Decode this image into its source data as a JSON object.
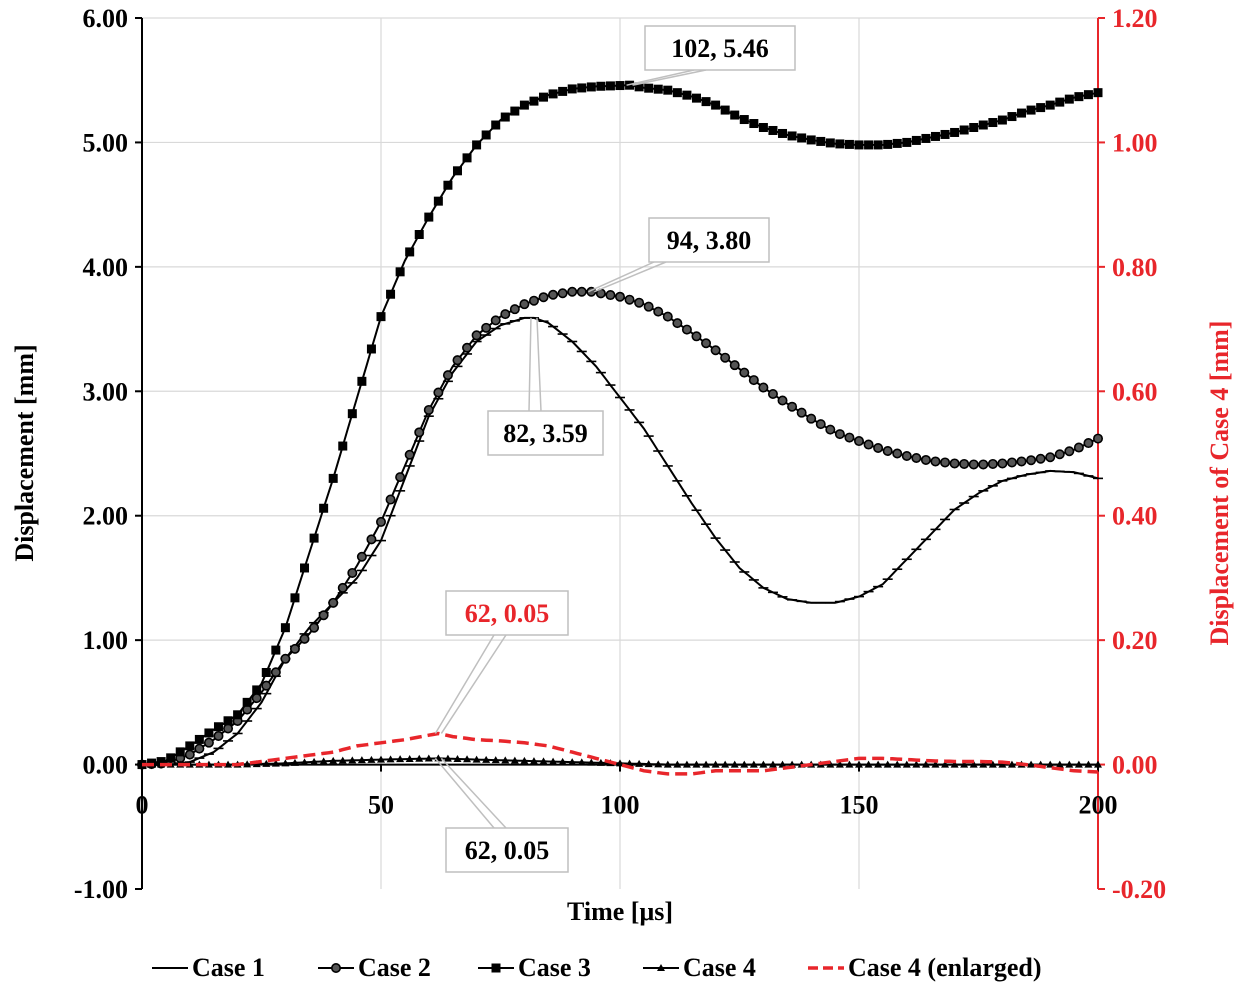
{
  "chart_data": {
    "type": "line",
    "title": "",
    "xlabel": "Time [μs]",
    "ylabel": "Displacement [mm]",
    "y2label": "Displacement of Case 4 [mm]",
    "xlim": [
      0,
      200
    ],
    "ylim": [
      -1.0,
      6.0
    ],
    "y2lim": [
      -0.2,
      1.2
    ],
    "x_ticks": [
      "0",
      "50",
      "100",
      "150",
      "200"
    ],
    "y_ticks": [
      "-1.00",
      "0.00",
      "1.00",
      "2.00",
      "3.00",
      "4.00",
      "5.00",
      "6.00"
    ],
    "y2_ticks": [
      "-0.20",
      "0.00",
      "0.20",
      "0.40",
      "0.60",
      "0.80",
      "1.00",
      "1.20"
    ],
    "grid": true,
    "legend_position": "bottom",
    "colors": {
      "black": "#000000",
      "red": "#e8262b",
      "grid": "#d9d9d9"
    },
    "series": [
      {
        "name": "Case 1",
        "axis": "left",
        "marker": "dash",
        "color": "#000000",
        "points": [
          [
            0,
            0
          ],
          [
            5,
            0
          ],
          [
            10,
            0.02
          ],
          [
            15,
            0.1
          ],
          [
            20,
            0.25
          ],
          [
            25,
            0.5
          ],
          [
            30,
            0.85
          ],
          [
            35,
            1.1
          ],
          [
            40,
            1.3
          ],
          [
            45,
            1.5
          ],
          [
            50,
            1.8
          ],
          [
            55,
            2.3
          ],
          [
            60,
            2.8
          ],
          [
            65,
            3.15
          ],
          [
            70,
            3.4
          ],
          [
            75,
            3.53
          ],
          [
            80,
            3.59
          ],
          [
            82,
            3.59
          ],
          [
            85,
            3.55
          ],
          [
            90,
            3.4
          ],
          [
            95,
            3.2
          ],
          [
            100,
            2.95
          ],
          [
            105,
            2.7
          ],
          [
            110,
            2.4
          ],
          [
            115,
            2.1
          ],
          [
            120,
            1.82
          ],
          [
            125,
            1.58
          ],
          [
            130,
            1.42
          ],
          [
            135,
            1.33
          ],
          [
            140,
            1.3
          ],
          [
            145,
            1.3
          ],
          [
            150,
            1.35
          ],
          [
            155,
            1.45
          ],
          [
            160,
            1.65
          ],
          [
            165,
            1.85
          ],
          [
            170,
            2.05
          ],
          [
            175,
            2.18
          ],
          [
            180,
            2.28
          ],
          [
            185,
            2.33
          ],
          [
            190,
            2.36
          ],
          [
            195,
            2.35
          ],
          [
            200,
            2.3
          ]
        ]
      },
      {
        "name": "Case 2",
        "axis": "left",
        "marker": "circle",
        "color": "#000000",
        "points": [
          [
            0,
            0
          ],
          [
            5,
            0.01
          ],
          [
            10,
            0.08
          ],
          [
            15,
            0.2
          ],
          [
            20,
            0.35
          ],
          [
            25,
            0.58
          ],
          [
            30,
            0.85
          ],
          [
            35,
            1.05
          ],
          [
            40,
            1.3
          ],
          [
            45,
            1.6
          ],
          [
            50,
            1.95
          ],
          [
            55,
            2.4
          ],
          [
            60,
            2.85
          ],
          [
            65,
            3.2
          ],
          [
            70,
            3.45
          ],
          [
            75,
            3.6
          ],
          [
            80,
            3.7
          ],
          [
            85,
            3.77
          ],
          [
            90,
            3.8
          ],
          [
            94,
            3.8
          ],
          [
            100,
            3.76
          ],
          [
            105,
            3.7
          ],
          [
            110,
            3.6
          ],
          [
            115,
            3.47
          ],
          [
            120,
            3.33
          ],
          [
            125,
            3.18
          ],
          [
            130,
            3.03
          ],
          [
            135,
            2.9
          ],
          [
            140,
            2.78
          ],
          [
            145,
            2.67
          ],
          [
            150,
            2.6
          ],
          [
            155,
            2.53
          ],
          [
            160,
            2.48
          ],
          [
            165,
            2.44
          ],
          [
            170,
            2.42
          ],
          [
            175,
            2.41
          ],
          [
            180,
            2.42
          ],
          [
            185,
            2.44
          ],
          [
            190,
            2.47
          ],
          [
            195,
            2.53
          ],
          [
            200,
            2.62
          ]
        ]
      },
      {
        "name": "Case 3",
        "axis": "left",
        "marker": "square",
        "color": "#000000",
        "points": [
          [
            0,
            0
          ],
          [
            5,
            0.03
          ],
          [
            10,
            0.15
          ],
          [
            15,
            0.28
          ],
          [
            20,
            0.4
          ],
          [
            25,
            0.65
          ],
          [
            30,
            1.1
          ],
          [
            35,
            1.7
          ],
          [
            40,
            2.3
          ],
          [
            45,
            2.95
          ],
          [
            50,
            3.6
          ],
          [
            55,
            4.05
          ],
          [
            60,
            4.4
          ],
          [
            65,
            4.72
          ],
          [
            70,
            4.98
          ],
          [
            75,
            5.18
          ],
          [
            80,
            5.3
          ],
          [
            85,
            5.38
          ],
          [
            90,
            5.43
          ],
          [
            95,
            5.45
          ],
          [
            102,
            5.46
          ],
          [
            105,
            5.44
          ],
          [
            110,
            5.42
          ],
          [
            115,
            5.37
          ],
          [
            120,
            5.3
          ],
          [
            125,
            5.2
          ],
          [
            130,
            5.12
          ],
          [
            135,
            5.06
          ],
          [
            140,
            5.02
          ],
          [
            145,
            4.99
          ],
          [
            150,
            4.98
          ],
          [
            155,
            4.98
          ],
          [
            160,
            5.0
          ],
          [
            165,
            5.04
          ],
          [
            170,
            5.08
          ],
          [
            175,
            5.13
          ],
          [
            180,
            5.18
          ],
          [
            185,
            5.25
          ],
          [
            190,
            5.3
          ],
          [
            195,
            5.36
          ],
          [
            200,
            5.4
          ]
        ]
      },
      {
        "name": "Case 4",
        "axis": "left",
        "marker": "triangle",
        "color": "#000000",
        "points": [
          [
            0,
            0
          ],
          [
            10,
            0
          ],
          [
            20,
            0
          ],
          [
            30,
            0.01
          ],
          [
            40,
            0.03
          ],
          [
            50,
            0.04
          ],
          [
            62,
            0.05
          ],
          [
            70,
            0.04
          ],
          [
            80,
            0.03
          ],
          [
            90,
            0.02
          ],
          [
            100,
            0.01
          ],
          [
            110,
            0
          ],
          [
            120,
            0
          ],
          [
            130,
            0
          ],
          [
            140,
            0
          ],
          [
            150,
            0
          ],
          [
            160,
            0
          ],
          [
            170,
            0
          ],
          [
            180,
            0
          ],
          [
            190,
            0
          ],
          [
            200,
            0
          ]
        ]
      },
      {
        "name": "Case 4 (enlarged)",
        "axis": "right",
        "marker": "none",
        "dashed": true,
        "color": "#e8262b",
        "points": [
          [
            0,
            0
          ],
          [
            10,
            0
          ],
          [
            20,
            0
          ],
          [
            25,
            0.005
          ],
          [
            30,
            0.01
          ],
          [
            35,
            0.015
          ],
          [
            40,
            0.02
          ],
          [
            45,
            0.03
          ],
          [
            50,
            0.035
          ],
          [
            55,
            0.04
          ],
          [
            62,
            0.05
          ],
          [
            65,
            0.045
          ],
          [
            70,
            0.04
          ],
          [
            75,
            0.038
          ],
          [
            80,
            0.035
          ],
          [
            85,
            0.03
          ],
          [
            90,
            0.02
          ],
          [
            95,
            0.01
          ],
          [
            100,
            0
          ],
          [
            105,
            -0.01
          ],
          [
            110,
            -0.015
          ],
          [
            115,
            -0.015
          ],
          [
            120,
            -0.01
          ],
          [
            125,
            -0.01
          ],
          [
            130,
            -0.01
          ],
          [
            135,
            -0.005
          ],
          [
            140,
            0
          ],
          [
            145,
            0.005
          ],
          [
            150,
            0.01
          ],
          [
            155,
            0.01
          ],
          [
            160,
            0.008
          ],
          [
            165,
            0.006
          ],
          [
            170,
            0.005
          ],
          [
            175,
            0.005
          ],
          [
            180,
            0.004
          ],
          [
            185,
            0
          ],
          [
            190,
            -0.005
          ],
          [
            195,
            -0.01
          ],
          [
            200,
            -0.012
          ]
        ]
      }
    ],
    "annotations": [
      {
        "text": "102, 5.46",
        "x": 102,
        "y": 5.46,
        "axis": "left",
        "color": "#000000"
      },
      {
        "text": "94, 3.80",
        "x": 94,
        "y": 3.8,
        "axis": "left",
        "color": "#000000"
      },
      {
        "text": "82, 3.59",
        "x": 82,
        "y": 3.59,
        "axis": "left",
        "color": "#000000"
      },
      {
        "text": "62, 0.05",
        "x": 62,
        "y": 0.05,
        "axis": "right",
        "color": "#e8262b"
      },
      {
        "text": "62, 0.05",
        "x": 62,
        "y": 0.05,
        "axis": "left",
        "color": "#000000"
      }
    ]
  }
}
